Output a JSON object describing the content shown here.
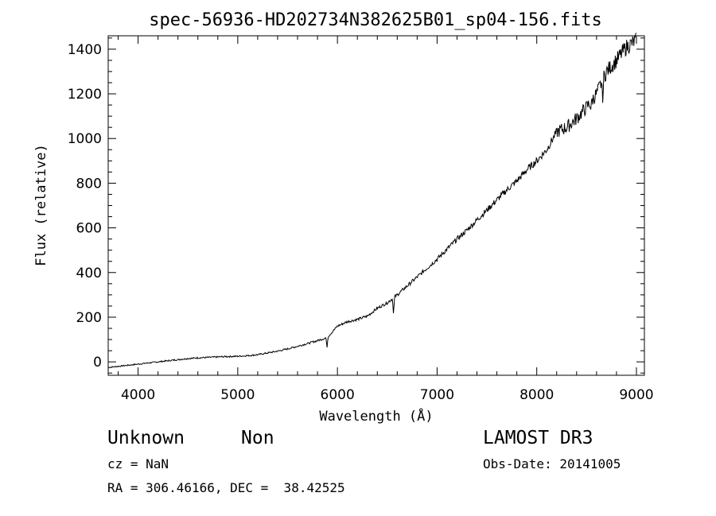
{
  "chart_data": {
    "type": "line",
    "title": "spec-56936-HD202734N382625B01_sp04-156.fits",
    "xlabel": "Wavelength (Å)",
    "ylabel": "Flux (relative)",
    "xlim": [
      3700,
      9080
    ],
    "ylim": [
      -60,
      1460
    ],
    "xticks": [
      4000,
      5000,
      6000,
      7000,
      8000,
      9000
    ],
    "yticks": [
      0,
      200,
      400,
      600,
      800,
      1000,
      1200,
      1400
    ],
    "grid": false,
    "series": [
      {
        "x": [
          3700,
          3800,
          3900,
          4000,
          4100,
          4200,
          4300,
          4400,
          4500,
          4600,
          4700,
          4800,
          4900,
          5000,
          5100,
          5200,
          5300,
          5400,
          5500,
          5600,
          5700,
          5800,
          5900,
          6000,
          6100,
          6200,
          6300,
          6400,
          6500,
          6600,
          6700,
          6800,
          6900,
          7000,
          7100,
          7200,
          7300,
          7400,
          7500,
          7600,
          7700,
          7800,
          7900,
          8000,
          8100,
          8200,
          8300,
          8400,
          8500,
          8600,
          8700,
          8800,
          8900,
          9000
        ],
        "y": [
          -25,
          -20,
          -15,
          -10,
          -5,
          0,
          5,
          10,
          15,
          18,
          20,
          22,
          24,
          25,
          28,
          32,
          40,
          48,
          58,
          70,
          82,
          95,
          110,
          160,
          180,
          190,
          205,
          240,
          265,
          300,
          340,
          380,
          420,
          460,
          505,
          550,
          590,
          635,
          680,
          725,
          770,
          810,
          860,
          900,
          950,
          1030,
          1050,
          1090,
          1140,
          1200,
          1300,
          1350,
          1410,
          1440
        ]
      }
    ],
    "dips": [
      {
        "x": 5895,
        "y": 60
      },
      {
        "x": 6563,
        "y": 210
      },
      {
        "x": 8542,
        "y": 1130
      },
      {
        "x": 8662,
        "y": 1160
      }
    ]
  },
  "info": {
    "object": "Unknown",
    "class": "Non",
    "survey": "LAMOST DR3",
    "cz": "cz = NaN",
    "obs_date": "Obs-Date: 20141005",
    "coords": "RA = 306.46166, DEC =  38.42525"
  }
}
